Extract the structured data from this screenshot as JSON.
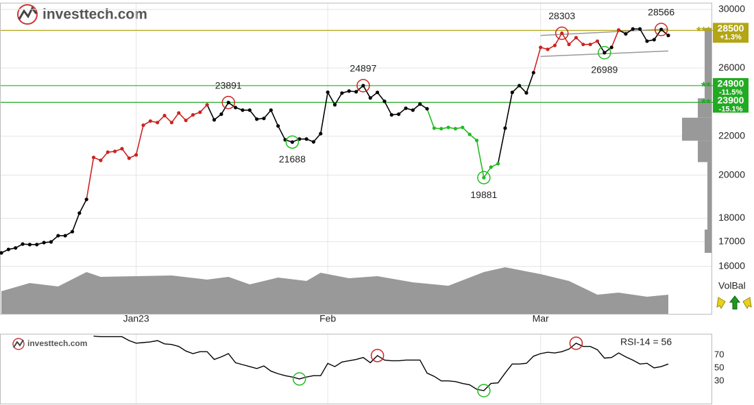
{
  "logo": "investtech.com",
  "volbal": "VolBal",
  "chart_data": [
    {
      "type": "line",
      "log": true,
      "ylim": [
        14200,
        30700
      ],
      "yticks": [
        16000,
        17000,
        18000,
        20000,
        22000,
        26000,
        30000
      ],
      "grid": true,
      "categories": [
        null,
        null,
        null,
        null,
        null,
        null,
        null,
        null,
        null,
        null,
        null,
        null,
        null,
        null,
        null,
        null,
        null,
        null,
        null,
        "Jan23",
        null,
        null,
        null,
        null,
        null,
        null,
        null,
        null,
        null,
        null,
        null,
        null,
        null,
        null,
        null,
        null,
        null,
        null,
        null,
        null,
        null,
        null,
        null,
        null,
        null,
        null,
        "Feb",
        null,
        null,
        null,
        null,
        null,
        null,
        null,
        null,
        null,
        null,
        null,
        null,
        null,
        null,
        null,
        null,
        null,
        null,
        null,
        null,
        null,
        null,
        null,
        null,
        null,
        null,
        null,
        null,
        null,
        "Mar",
        null,
        null,
        null,
        null,
        null,
        null,
        null,
        null,
        null,
        null,
        null,
        null,
        null,
        null,
        null,
        null,
        null,
        null
      ],
      "values": [
        16540,
        16680,
        16740,
        16900,
        16880,
        16880,
        16960,
        16990,
        17250,
        17250,
        17420,
        18230,
        18850,
        20890,
        20740,
        21160,
        21200,
        21340,
        20850,
        21020,
        22600,
        22830,
        22750,
        23140,
        22750,
        23290,
        22870,
        23180,
        23330,
        23760,
        22900,
        23220,
        23891,
        23600,
        23450,
        23450,
        22940,
        22980,
        23450,
        22560,
        21810,
        21688,
        21850,
        21850,
        21700,
        22140,
        24500,
        23760,
        24450,
        24570,
        24530,
        24897,
        24160,
        24490,
        23960,
        23180,
        23220,
        23560,
        23450,
        23800,
        23530,
        22440,
        22410,
        22480,
        22410,
        22480,
        22100,
        21780,
        19881,
        20400,
        20570,
        22440,
        24490,
        24900,
        24460,
        25700,
        27340,
        27210,
        27470,
        28303,
        27540,
        28000,
        27540,
        27540,
        27760,
        26989,
        27340,
        28530,
        28260,
        28600,
        28600,
        27760,
        27860,
        28566,
        28150
      ],
      "colors": [
        "#000",
        "#000",
        "#000",
        "#000",
        "#000",
        "#000",
        "#000",
        "#000",
        "#000",
        "#000",
        "#000",
        "#000",
        "#000",
        "#c22",
        "#c22",
        "#c22",
        "#c22",
        "#c22",
        "#c22",
        "#c22",
        "#c22",
        "#c22",
        "#c22",
        "#c22",
        "#c22",
        "#c22",
        "#c22",
        "#c22",
        "#c22",
        "#c22",
        "#000",
        "#000",
        "#000",
        "#000",
        "#000",
        "#000",
        "#000",
        "#000",
        "#000",
        "#000",
        "#000",
        "#000",
        "#000",
        "#000",
        "#000",
        "#000",
        "#000",
        "#000",
        "#000",
        "#000",
        "#000",
        "#000",
        "#000",
        "#000",
        "#000",
        "#000",
        "#000",
        "#000",
        "#000",
        "#000",
        "#000",
        "#2b2",
        "#2b2",
        "#2b2",
        "#2b2",
        "#2b2",
        "#2b2",
        "#2b2",
        "#2b2",
        "#2b2",
        "#2b2",
        "#000",
        "#000",
        "#000",
        "#000",
        "#000",
        "#c22",
        "#c22",
        "#c22",
        "#c22",
        "#c22",
        "#c22",
        "#c22",
        "#c22",
        "#c22",
        "#000",
        "#000",
        "#c22",
        "#000",
        "#000",
        "#000",
        "#000",
        "#000",
        "#000",
        "#000"
      ],
      "annotations": [
        {
          "index": 32,
          "label": "23891",
          "color": "#c22",
          "position": "above"
        },
        {
          "index": 41,
          "label": "21688",
          "color": "#2b2",
          "position": "below"
        },
        {
          "index": 51,
          "label": "24897",
          "color": "#c22",
          "position": "above"
        },
        {
          "index": 68,
          "label": "19881",
          "color": "#2b2",
          "position": "below"
        },
        {
          "index": 79,
          "label": "28303",
          "color": "#c22",
          "position": "above"
        },
        {
          "index": 85,
          "label": "26989",
          "color": "#2b2",
          "position": "below"
        },
        {
          "index": 93,
          "label": "28566",
          "color": "#c22",
          "position": "above"
        }
      ],
      "levels": [
        {
          "value": 28500,
          "change": "+1.3%",
          "stars": "***",
          "color": "#b3a514"
        },
        {
          "value": 24900,
          "change": "-11.5%",
          "stars": "**",
          "color": "#22aa22"
        },
        {
          "value": 23900,
          "change": "-15.1%",
          "stars": "**",
          "color": "#22aa22"
        }
      ],
      "trend_lines": {
        "color": "#999",
        "lines": [
          {
            "x": [
              76,
              94
            ],
            "y": [
              28150,
              28600
            ]
          },
          {
            "x": [
              76,
              94
            ],
            "y": [
              26740,
              27100
            ]
          }
        ]
      },
      "volume": {
        "color": "#999",
        "ylim": [
          0,
          70
        ],
        "x": [
          0,
          4,
          8,
          12,
          14,
          19,
          24,
          29,
          32,
          35,
          39,
          43,
          45,
          49,
          53,
          58,
          63,
          68,
          71,
          76,
          80,
          84,
          87,
          91,
          94
        ],
        "values": [
          33,
          45,
          40,
          61,
          54,
          55,
          56,
          50,
          54,
          43,
          53,
          48,
          60,
          52,
          55,
          46,
          41,
          61,
          68,
          58,
          48,
          28,
          31,
          25,
          28
        ]
      },
      "volume_profile": {
        "color": "#999",
        "xlim": [
          0,
          45
        ],
        "bins": [
          16540,
          17510,
          20650,
          21760,
          23020,
          24140,
          28670
        ],
        "values": [
          10,
          6,
          20,
          43,
          20,
          10
        ]
      }
    },
    {
      "type": "line",
      "title": "RSI-14 = 56",
      "ylim": [
        -5,
        101
      ],
      "yticks": [
        30,
        50,
        70
      ],
      "color": "#000",
      "values": [
        null,
        null,
        null,
        null,
        null,
        null,
        null,
        null,
        null,
        null,
        null,
        null,
        null,
        99,
        98,
        98,
        98,
        98,
        92,
        88,
        89,
        90,
        92,
        87,
        86,
        83,
        76,
        72,
        75,
        75,
        63,
        67,
        72,
        58,
        55,
        52,
        49,
        53,
        45,
        41,
        38,
        36,
        33,
        36,
        38,
        38,
        57,
        52,
        59,
        61,
        63,
        66,
        58,
        69,
        62,
        61,
        61,
        62,
        62,
        62,
        42,
        37,
        30,
        30,
        29,
        26,
        24,
        17,
        15,
        26,
        27,
        42,
        56,
        56,
        57,
        68,
        72,
        74,
        73,
        75,
        79,
        88,
        83,
        83,
        78,
        65,
        66,
        73,
        67,
        62,
        56,
        57,
        50,
        52,
        56
      ],
      "circles": [
        {
          "index": 42,
          "color": "#2b2"
        },
        {
          "index": 53,
          "color": "#c22"
        },
        {
          "index": 68,
          "color": "#2b2"
        },
        {
          "index": 81,
          "color": "#c22"
        }
      ]
    }
  ]
}
